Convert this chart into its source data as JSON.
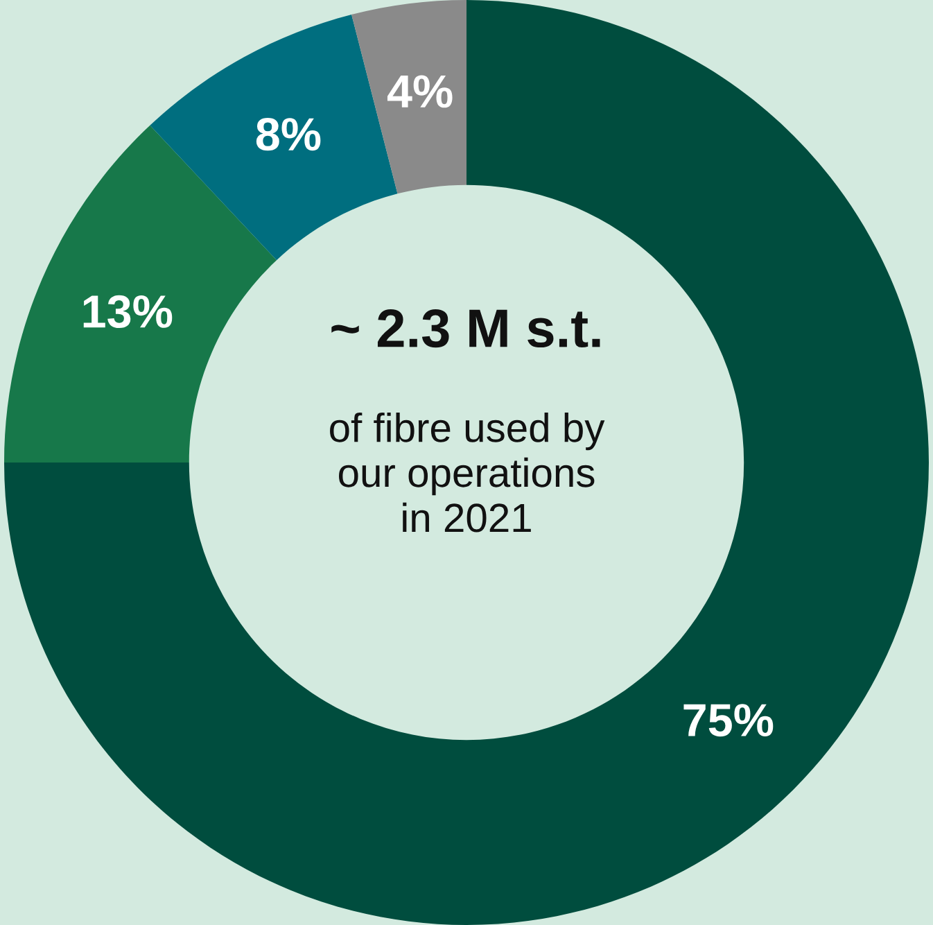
{
  "chart_data": {
    "type": "donut",
    "title": "~ 2.3 M s.t.",
    "subtitle": "of fibre used by\nour operations\nin 2021",
    "categories": [
      null,
      null,
      null,
      null
    ],
    "values": [
      75,
      13,
      8,
      4
    ],
    "colors": [
      "#004d3e",
      "#17784a",
      "#006e7f",
      "#8a8a8a"
    ],
    "value_labels": [
      "75%",
      "13%",
      "8%",
      "4%"
    ],
    "legend": false
  }
}
